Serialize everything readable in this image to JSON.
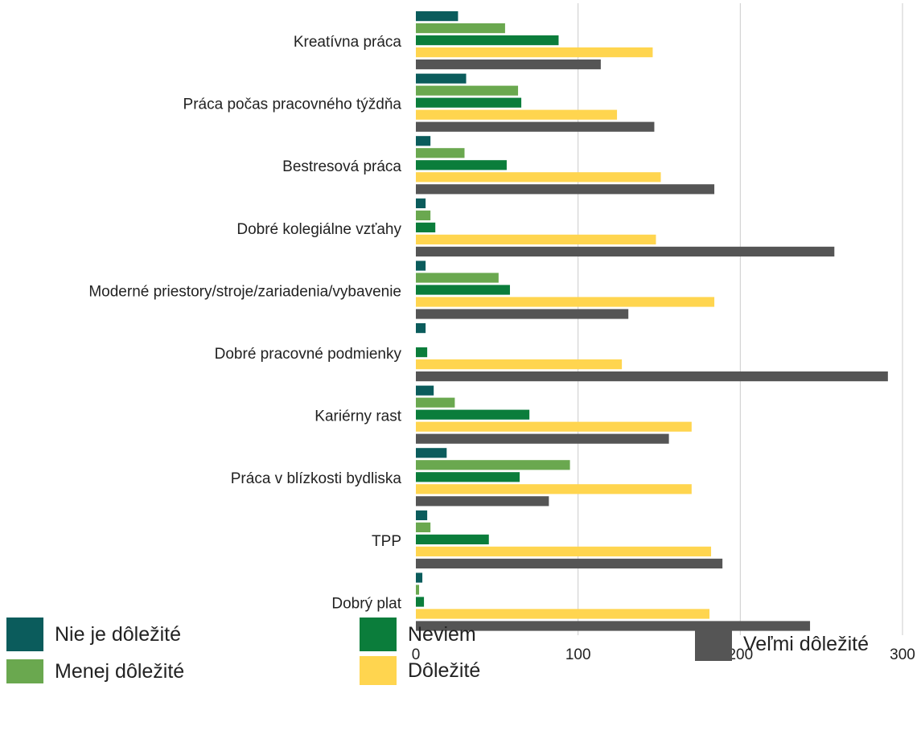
{
  "chart_data": {
    "type": "bar",
    "orientation": "horizontal",
    "categories": [
      "Kreatívna práca",
      "Práca počas pracovného týždňa",
      "Bestresová práca",
      "Dobré kolegiálne vzťahy",
      "Moderné priestory/stroje/zariadenia/vybavenie",
      "Dobré pracovné podmienky",
      "Kariérny rast",
      "Práca v blízkosti bydliska",
      "TPP",
      "Dobrý plat"
    ],
    "series": [
      {
        "name": "Nie je dôležité",
        "color": "#0b5c5c",
        "values": [
          26,
          31,
          9,
          6,
          6,
          6,
          11,
          19,
          7,
          4
        ]
      },
      {
        "name": "Menej dôležité",
        "color": "#6aa84f",
        "values": [
          55,
          63,
          30,
          9,
          51,
          0,
          24,
          95,
          9,
          2
        ]
      },
      {
        "name": "Neviem",
        "color": "#0b7d3b",
        "values": [
          88,
          65,
          56,
          12,
          58,
          7,
          70,
          64,
          45,
          5
        ]
      },
      {
        "name": "Dôležité",
        "color": "#ffd54f",
        "values": [
          146,
          124,
          151,
          148,
          184,
          127,
          170,
          170,
          182,
          181
        ]
      },
      {
        "name": "Veľmi dôležité",
        "color": "#555555",
        "values": [
          114,
          147,
          184,
          258,
          131,
          291,
          156,
          82,
          189,
          243
        ]
      }
    ],
    "xlim": [
      0,
      300
    ],
    "xticks": [
      "0",
      "100",
      "200",
      "300"
    ],
    "grid": true,
    "legend_position": "bottom",
    "title": "",
    "xlabel": "",
    "ylabel": ""
  }
}
